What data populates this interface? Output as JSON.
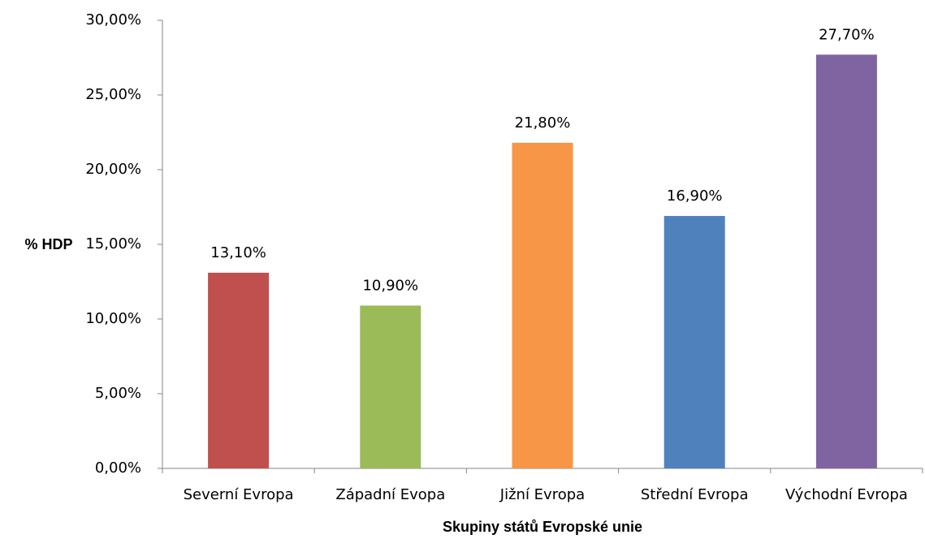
{
  "chart_data": {
    "type": "bar",
    "x_label": "Skupiny států Evropské unie",
    "y_label": "% HDP",
    "categories": [
      "Severní Evropa",
      "Západní Evopa",
      "Jižní Evropa",
      "Střední Evropa",
      "Východní Evropa"
    ],
    "values": [
      13.1,
      10.9,
      21.8,
      16.9,
      27.7
    ],
    "value_labels": [
      "13,10%",
      "10,90%",
      "21,80%",
      "16,90%",
      "27,70%"
    ],
    "colors": [
      "#c0504d",
      "#9bbb59",
      "#f79646",
      "#4f81bd",
      "#8064a2"
    ],
    "ylim": [
      0,
      30
    ],
    "yticks": [
      {
        "value": 0,
        "label": "0,00%"
      },
      {
        "value": 5,
        "label": "5,00%"
      },
      {
        "value": 10,
        "label": "10,00%"
      },
      {
        "value": 15,
        "label": "15,00%"
      },
      {
        "value": 20,
        "label": "20,00%"
      },
      {
        "value": 25,
        "label": "25,00%"
      },
      {
        "value": 30,
        "label": "30,00%"
      }
    ],
    "grid": false
  }
}
